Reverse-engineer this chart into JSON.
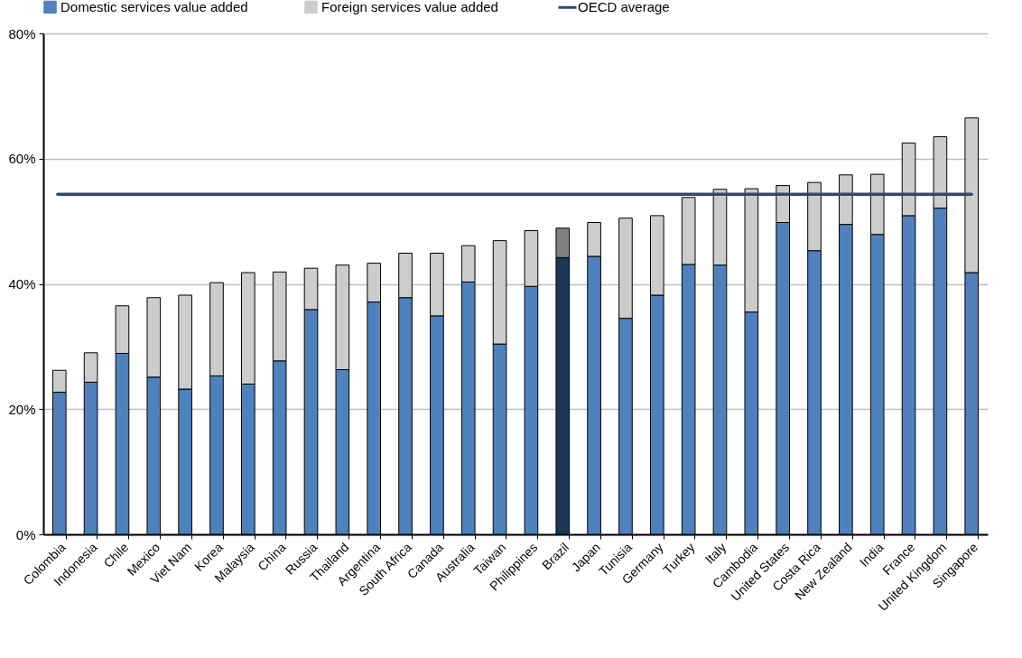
{
  "chart_data": {
    "type": "bar",
    "stacked": true,
    "categories": [
      "Colombia",
      "Indonesia",
      "Chile",
      "Mexico",
      "Viet Nam",
      "Korea",
      "Malaysia",
      "China",
      "Russia",
      "Thailand",
      "Argentina",
      "South Africa",
      "Canada",
      "Australia",
      "Taiwan",
      "Philippines",
      "Brazil",
      "Japan",
      "Tunisia",
      "Germany",
      "Turkey",
      "Italy",
      "Cambodia",
      "United States",
      "Costa Rica",
      "New Zealand",
      "India",
      "France",
      "United Kingdom",
      "Singapore"
    ],
    "series": [
      {
        "name": "Domestic services value added",
        "color": "#4f81bd",
        "colors": [
          "#4f81bd",
          "#4f81bd",
          "#4f81bd",
          "#4f81bd",
          "#4f81bd",
          "#4f81bd",
          "#4f81bd",
          "#4f81bd",
          "#4f81bd",
          "#4f81bd",
          "#4f81bd",
          "#4f81bd",
          "#4f81bd",
          "#4f81bd",
          "#4f81bd",
          "#4f81bd",
          "#1c3658",
          "#4f81bd",
          "#4f81bd",
          "#4f81bd",
          "#4f81bd",
          "#4f81bd",
          "#4f81bd",
          "#4f81bd",
          "#4f81bd",
          "#4f81bd",
          "#4f81bd",
          "#4f81bd",
          "#4f81bd",
          "#4f81bd"
        ],
        "values": [
          22.7,
          24.3,
          28.9,
          25.1,
          23.2,
          25.3,
          24.0,
          27.7,
          35.9,
          26.3,
          37.1,
          37.8,
          34.9,
          40.3,
          30.4,
          39.6,
          44.2,
          44.4,
          34.5,
          38.2,
          43.1,
          43.0,
          35.5,
          49.8,
          45.3,
          49.5,
          47.9,
          50.9,
          52.1,
          41.8
        ]
      },
      {
        "name": "Foreign services value added",
        "color": "#cccccc",
        "colors": [
          "#cccccc",
          "#cccccc",
          "#cccccc",
          "#cccccc",
          "#cccccc",
          "#cccccc",
          "#cccccc",
          "#cccccc",
          "#cccccc",
          "#cccccc",
          "#cccccc",
          "#cccccc",
          "#cccccc",
          "#cccccc",
          "#cccccc",
          "#cccccc",
          "#808080",
          "#cccccc",
          "#cccccc",
          "#cccccc",
          "#cccccc",
          "#cccccc",
          "#cccccc",
          "#cccccc",
          "#cccccc",
          "#cccccc",
          "#cccccc",
          "#cccccc",
          "#cccccc",
          "#cccccc"
        ],
        "values": [
          3.5,
          4.7,
          7.6,
          12.7,
          15.0,
          14.9,
          17.8,
          14.2,
          6.6,
          16.7,
          6.2,
          7.1,
          10.0,
          5.8,
          16.5,
          8.9,
          4.7,
          5.4,
          16.0,
          12.7,
          10.7,
          12.1,
          19.7,
          5.9,
          10.9,
          7.9,
          9.6,
          11.6,
          11.4,
          24.7
        ]
      }
    ],
    "ref_lines": [
      {
        "axis": "y",
        "value": 54.3,
        "label": "OECD average",
        "color": "#2c4a6e"
      }
    ],
    "ylim": [
      0,
      80
    ],
    "yticks": [
      {
        "value": 0,
        "label": "0%"
      },
      {
        "value": 20,
        "label": "20%"
      },
      {
        "value": 40,
        "label": "40%"
      },
      {
        "value": 60,
        "label": "60%"
      },
      {
        "value": 80,
        "label": "80%"
      }
    ],
    "grid": "y",
    "legend": "top"
  }
}
